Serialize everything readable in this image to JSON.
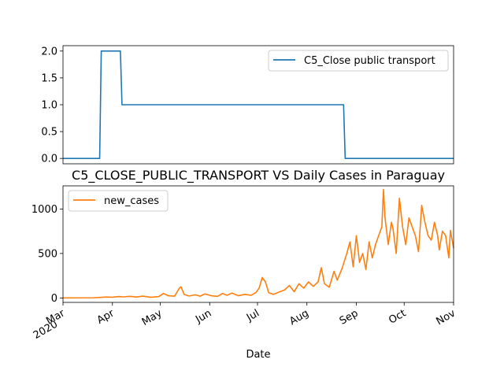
{
  "chart_data": [
    {
      "type": "line",
      "title": "",
      "xlabel": "",
      "ylabel": "",
      "ylim": [
        -0.1,
        2.1
      ],
      "yticks": [
        "0.0",
        "0.5",
        "1.0",
        "1.5",
        "2.0"
      ],
      "ytick_values": [
        0,
        0.5,
        1.0,
        1.5,
        2.0
      ],
      "legend": "top-right",
      "grid": false,
      "series": [
        {
          "name": "C5_Close public transport",
          "color": "#1f77b4",
          "points": [
            [
              "2020-03-01",
              0
            ],
            [
              "2020-03-24",
              0
            ],
            [
              "2020-03-25",
              2
            ],
            [
              "2020-04-06",
              2
            ],
            [
              "2020-04-07",
              1
            ],
            [
              "2020-08-24",
              1
            ],
            [
              "2020-08-25",
              0
            ],
            [
              "2020-11-01",
              0
            ]
          ]
        }
      ]
    },
    {
      "type": "line",
      "title": "C5_CLOSE_PUBLIC_TRANSPORT VS Daily Cases in Paraguay",
      "xlabel": "Date",
      "ylabel": "",
      "ylim": [
        -50,
        1260
      ],
      "yticks": [
        "0",
        "500",
        "1000"
      ],
      "ytick_values": [
        0,
        500,
        1000
      ],
      "xtick_labels": [
        "Mar\n2020",
        "Apr",
        "May",
        "Jun",
        "Jul",
        "Aug",
        "Sep",
        "Oct",
        "Nov"
      ],
      "legend": "top-left",
      "grid": false,
      "series": [
        {
          "name": "new_cases",
          "color": "#ff7f0e",
          "points": [
            [
              "2020-03-01",
              0
            ],
            [
              "2020-03-10",
              1
            ],
            [
              "2020-03-20",
              2
            ],
            [
              "2020-03-24",
              6
            ],
            [
              "2020-03-28",
              10
            ],
            [
              "2020-04-01",
              8
            ],
            [
              "2020-04-05",
              16
            ],
            [
              "2020-04-08",
              12
            ],
            [
              "2020-04-12",
              18
            ],
            [
              "2020-04-16",
              10
            ],
            [
              "2020-04-20",
              20
            ],
            [
              "2020-04-25",
              8
            ],
            [
              "2020-04-30",
              15
            ],
            [
              "2020-05-03",
              50
            ],
            [
              "2020-05-06",
              25
            ],
            [
              "2020-05-10",
              20
            ],
            [
              "2020-05-13",
              110
            ],
            [
              "2020-05-14",
              125
            ],
            [
              "2020-05-16",
              40
            ],
            [
              "2020-05-19",
              22
            ],
            [
              "2020-05-23",
              35
            ],
            [
              "2020-05-26",
              20
            ],
            [
              "2020-05-29",
              45
            ],
            [
              "2020-06-02",
              25
            ],
            [
              "2020-06-06",
              18
            ],
            [
              "2020-06-09",
              50
            ],
            [
              "2020-06-12",
              30
            ],
            [
              "2020-06-15",
              55
            ],
            [
              "2020-06-19",
              25
            ],
            [
              "2020-06-23",
              40
            ],
            [
              "2020-06-27",
              30
            ],
            [
              "2020-06-30",
              60
            ],
            [
              "2020-07-02",
              110
            ],
            [
              "2020-07-04",
              230
            ],
            [
              "2020-07-06",
              180
            ],
            [
              "2020-07-08",
              60
            ],
            [
              "2020-07-11",
              40
            ],
            [
              "2020-07-15",
              70
            ],
            [
              "2020-07-18",
              90
            ],
            [
              "2020-07-21",
              140
            ],
            [
              "2020-07-24",
              70
            ],
            [
              "2020-07-27",
              160
            ],
            [
              "2020-07-30",
              110
            ],
            [
              "2020-08-02",
              180
            ],
            [
              "2020-08-05",
              130
            ],
            [
              "2020-08-08",
              180
            ],
            [
              "2020-08-10",
              340
            ],
            [
              "2020-08-12",
              160
            ],
            [
              "2020-08-15",
              120
            ],
            [
              "2020-08-18",
              300
            ],
            [
              "2020-08-20",
              200
            ],
            [
              "2020-08-23",
              330
            ],
            [
              "2020-08-26",
              500
            ],
            [
              "2020-08-28",
              630
            ],
            [
              "2020-08-30",
              350
            ],
            [
              "2020-09-01",
              700
            ],
            [
              "2020-09-03",
              400
            ],
            [
              "2020-09-05",
              500
            ],
            [
              "2020-09-07",
              320
            ],
            [
              "2020-09-09",
              630
            ],
            [
              "2020-09-11",
              450
            ],
            [
              "2020-09-13",
              600
            ],
            [
              "2020-09-15",
              700
            ],
            [
              "2020-09-17",
              800
            ],
            [
              "2020-09-18",
              1220
            ],
            [
              "2020-09-19",
              900
            ],
            [
              "2020-09-21",
              600
            ],
            [
              "2020-09-23",
              850
            ],
            [
              "2020-09-24",
              780
            ],
            [
              "2020-09-26",
              500
            ],
            [
              "2020-09-28",
              1120
            ],
            [
              "2020-09-30",
              800
            ],
            [
              "2020-10-02",
              600
            ],
            [
              "2020-10-04",
              900
            ],
            [
              "2020-10-06",
              800
            ],
            [
              "2020-10-08",
              700
            ],
            [
              "2020-10-10",
              520
            ],
            [
              "2020-10-12",
              1040
            ],
            [
              "2020-10-14",
              850
            ],
            [
              "2020-10-16",
              700
            ],
            [
              "2020-10-18",
              650
            ],
            [
              "2020-10-20",
              850
            ],
            [
              "2020-10-22",
              700
            ],
            [
              "2020-10-23",
              540
            ],
            [
              "2020-10-25",
              750
            ],
            [
              "2020-10-27",
              700
            ],
            [
              "2020-10-29",
              450
            ],
            [
              "2020-10-30",
              760
            ],
            [
              "2020-11-01",
              560
            ]
          ]
        }
      ]
    }
  ]
}
